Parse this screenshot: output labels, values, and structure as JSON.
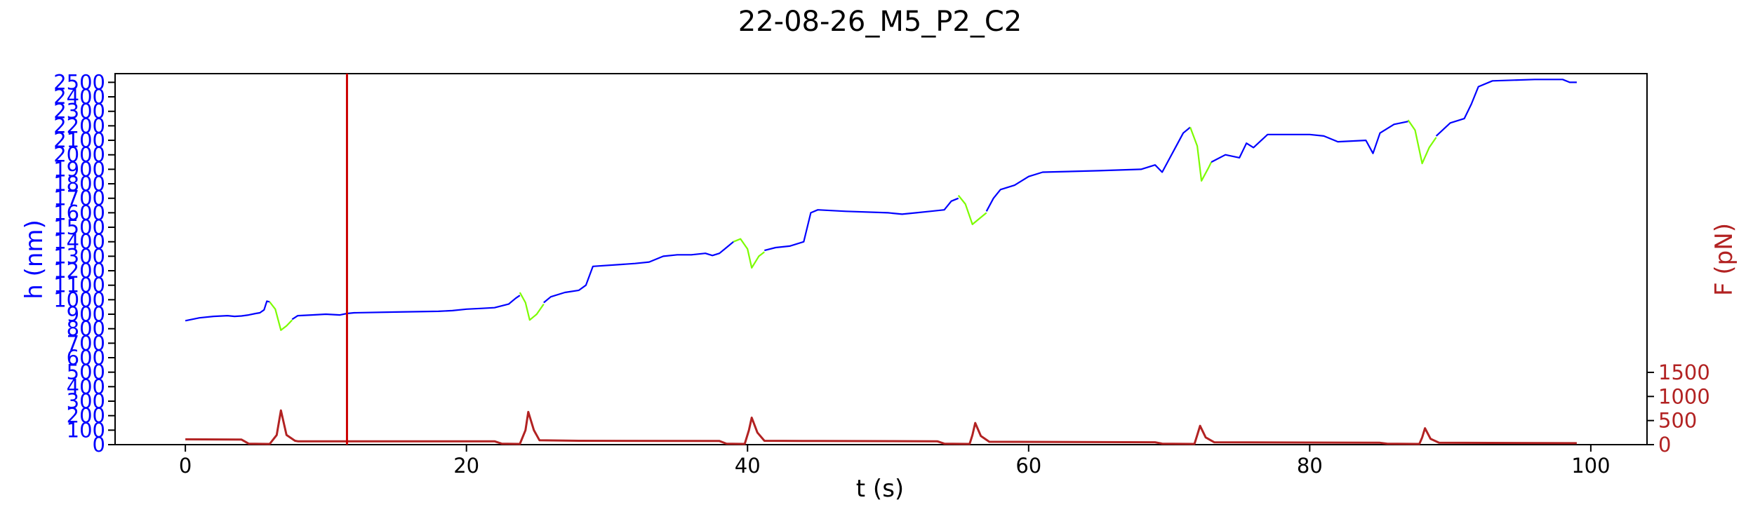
{
  "chart_data": {
    "type": "line",
    "title": "22-08-26_M5_P2_C2",
    "xlabel": "t (s)",
    "ylabel_left": "h (nm)",
    "ylabel_right": "F (pN)",
    "xlim": [
      -5,
      104
    ],
    "ylim_left": [
      0,
      2560
    ],
    "ylim_right": [
      0,
      7700
    ],
    "x_ticks": [
      0,
      20,
      40,
      60,
      80,
      100
    ],
    "y_left_ticks": [
      0,
      100,
      200,
      300,
      400,
      500,
      600,
      700,
      800,
      900,
      1000,
      1100,
      1200,
      1300,
      1400,
      1500,
      1600,
      1700,
      1800,
      1900,
      2000,
      2100,
      2200,
      2300,
      2400,
      2500
    ],
    "y_right_ticks": [
      0,
      500,
      1000,
      1500
    ],
    "grid": false,
    "colors": {
      "height": "#0000ff",
      "height_highlight": "#7cfc00",
      "force": "#b22222",
      "marker": "#cc0000"
    },
    "vertical_marker_x": 11.5,
    "series": [
      {
        "values": [
          [
            0,
            855
          ],
          [
            1,
            875
          ],
          [
            2,
            885
          ],
          [
            3,
            890
          ],
          [
            3.5,
            885
          ],
          [
            4,
            888
          ],
          [
            4.5,
            895
          ],
          [
            5,
            905
          ],
          [
            5.3,
            910
          ],
          [
            5.6,
            930
          ],
          [
            5.8,
            990
          ],
          [
            6,
            985
          ]
        ]
      },
      {
        "values": [
          [
            6,
            985
          ],
          [
            6.4,
            935
          ],
          [
            6.8,
            790
          ],
          [
            7.2,
            820
          ],
          [
            7.6,
            860
          ]
        ]
      },
      {
        "values": [
          [
            7.6,
            865
          ],
          [
            8,
            890
          ],
          [
            9,
            895
          ],
          [
            10,
            900
          ],
          [
            11,
            895
          ],
          [
            11.5,
            905
          ],
          [
            12,
            910
          ],
          [
            15,
            915
          ],
          [
            18,
            920
          ],
          [
            19,
            925
          ],
          [
            20,
            935
          ],
          [
            21,
            940
          ],
          [
            22,
            945
          ],
          [
            23,
            970
          ],
          [
            23.5,
            1010
          ],
          [
            23.8,
            1030
          ]
        ]
      },
      {
        "values": [
          [
            23.8,
            1050
          ],
          [
            24.2,
            980
          ],
          [
            24.5,
            860
          ],
          [
            25,
            900
          ],
          [
            25.5,
            970
          ]
        ]
      },
      {
        "values": [
          [
            25.5,
            980
          ],
          [
            26,
            1020
          ],
          [
            27,
            1050
          ],
          [
            28,
            1065
          ],
          [
            28.5,
            1100
          ],
          [
            29,
            1230
          ],
          [
            32,
            1250
          ],
          [
            33,
            1260
          ],
          [
            34,
            1300
          ],
          [
            35,
            1310
          ],
          [
            36,
            1310
          ],
          [
            37,
            1320
          ],
          [
            37.5,
            1305
          ],
          [
            38,
            1320
          ],
          [
            38.5,
            1360
          ],
          [
            39,
            1400
          ]
        ]
      },
      {
        "values": [
          [
            39,
            1400
          ],
          [
            39.5,
            1420
          ],
          [
            40,
            1350
          ],
          [
            40.3,
            1220
          ],
          [
            40.8,
            1300
          ],
          [
            41.2,
            1330
          ]
        ]
      },
      {
        "values": [
          [
            41.2,
            1340
          ],
          [
            42,
            1360
          ],
          [
            43,
            1370
          ],
          [
            44,
            1400
          ],
          [
            44.5,
            1600
          ],
          [
            45,
            1620
          ],
          [
            47,
            1610
          ],
          [
            50,
            1600
          ],
          [
            51,
            1590
          ],
          [
            52,
            1600
          ],
          [
            53,
            1610
          ],
          [
            54,
            1620
          ],
          [
            54.5,
            1680
          ],
          [
            55,
            1700
          ]
        ]
      },
      {
        "values": [
          [
            55,
            1720
          ],
          [
            55.5,
            1660
          ],
          [
            56,
            1520
          ],
          [
            56.5,
            1560
          ],
          [
            57,
            1600
          ]
        ]
      },
      {
        "values": [
          [
            57,
            1610
          ],
          [
            57.5,
            1700
          ],
          [
            58,
            1760
          ],
          [
            59,
            1790
          ],
          [
            60,
            1850
          ],
          [
            61,
            1880
          ],
          [
            65,
            1890
          ],
          [
            68,
            1900
          ],
          [
            69,
            1930
          ],
          [
            69.5,
            1880
          ],
          [
            70,
            1970
          ],
          [
            70.5,
            2060
          ],
          [
            71,
            2150
          ],
          [
            71.5,
            2190
          ]
        ]
      },
      {
        "values": [
          [
            71.5,
            2190
          ],
          [
            72,
            2060
          ],
          [
            72.3,
            1820
          ],
          [
            72.8,
            1910
          ],
          [
            73,
            1950
          ]
        ]
      },
      {
        "values": [
          [
            73,
            1950
          ],
          [
            74,
            2000
          ],
          [
            75,
            1980
          ],
          [
            75.5,
            2080
          ],
          [
            76,
            2050
          ],
          [
            77,
            2140
          ],
          [
            80,
            2140
          ],
          [
            81,
            2130
          ],
          [
            82,
            2090
          ],
          [
            84,
            2100
          ],
          [
            84.5,
            2010
          ],
          [
            85,
            2150
          ],
          [
            86,
            2210
          ],
          [
            87,
            2230
          ]
        ]
      },
      {
        "values": [
          [
            87,
            2240
          ],
          [
            87.5,
            2170
          ],
          [
            88,
            1940
          ],
          [
            88.5,
            2050
          ],
          [
            89,
            2120
          ]
        ]
      },
      {
        "values": [
          [
            89,
            2130
          ],
          [
            90,
            2220
          ],
          [
            91,
            2250
          ],
          [
            91.5,
            2350
          ],
          [
            92,
            2470
          ],
          [
            93,
            2510
          ],
          [
            96,
            2520
          ],
          [
            98,
            2520
          ],
          [
            98.5,
            2500
          ],
          [
            99,
            2500
          ]
        ]
      },
      {
        "values": [
          [
            0,
            110
          ],
          [
            4,
            105
          ],
          [
            4.5,
            20
          ],
          [
            6,
            15
          ],
          [
            6.5,
            200
          ],
          [
            6.8,
            710
          ],
          [
            7.2,
            200
          ],
          [
            7.8,
            80
          ],
          [
            8,
            70
          ],
          [
            22,
            70
          ],
          [
            22.5,
            20
          ],
          [
            23.8,
            15
          ],
          [
            24.2,
            300
          ],
          [
            24.4,
            680
          ],
          [
            24.8,
            300
          ],
          [
            25.2,
            90
          ],
          [
            28,
            80
          ],
          [
            38,
            75
          ],
          [
            38.5,
            20
          ],
          [
            39.8,
            15
          ],
          [
            40.1,
            300
          ],
          [
            40.3,
            560
          ],
          [
            40.7,
            250
          ],
          [
            41.2,
            80
          ],
          [
            45,
            75
          ],
          [
            53.5,
            70
          ],
          [
            54,
            20
          ],
          [
            55.8,
            15
          ],
          [
            56,
            200
          ],
          [
            56.2,
            450
          ],
          [
            56.6,
            180
          ],
          [
            57.2,
            60
          ],
          [
            69,
            50
          ],
          [
            69.5,
            20
          ],
          [
            71.8,
            15
          ],
          [
            72,
            200
          ],
          [
            72.2,
            390
          ],
          [
            72.6,
            150
          ],
          [
            73.2,
            50
          ],
          [
            85,
            40
          ],
          [
            85.5,
            20
          ],
          [
            87.8,
            15
          ],
          [
            88,
            150
          ],
          [
            88.2,
            340
          ],
          [
            88.6,
            120
          ],
          [
            89.2,
            40
          ],
          [
            99,
            30
          ]
        ]
      }
    ]
  }
}
